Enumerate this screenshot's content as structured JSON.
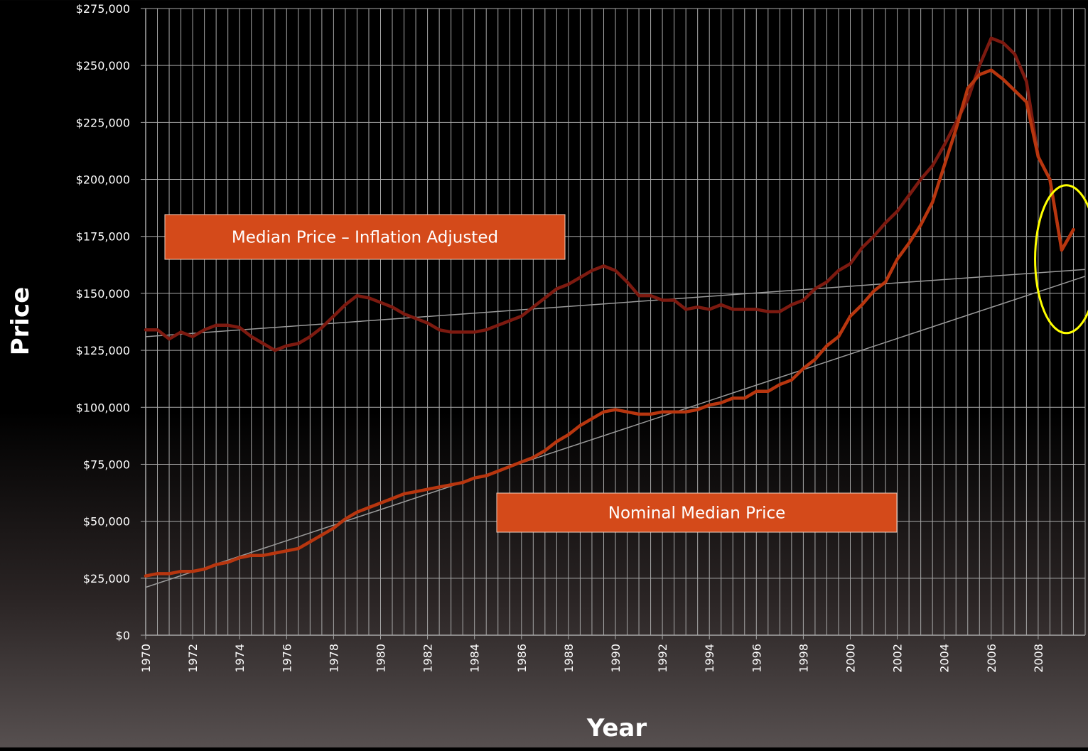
{
  "chart_data": {
    "type": "line",
    "xlabel": "Year",
    "ylabel": "Price",
    "xlim": [
      1970,
      2010
    ],
    "ylim": [
      0,
      275000
    ],
    "grid": true,
    "x_ticks": [
      "1970",
      "1972",
      "1974",
      "1976",
      "1978",
      "1980",
      "1982",
      "1984",
      "1986",
      "1988",
      "1990",
      "1992",
      "1994",
      "1996",
      "1998",
      "2000",
      "2002",
      "2004",
      "2006",
      "2008"
    ],
    "y_ticks": [
      "$0",
      "$25,000",
      "$50,000",
      "$75,000",
      "$100,000",
      "$125,000",
      "$150,000",
      "$175,000",
      "$200,000",
      "$225,000",
      "$250,000",
      "$275,000"
    ],
    "series": [
      {
        "name": "Median Price – Inflation Adjusted",
        "color": "#7d1a10",
        "x": [
          1970,
          1970.5,
          1971,
          1971.5,
          1972,
          1972.5,
          1973,
          1973.5,
          1974,
          1974.5,
          1975,
          1975.5,
          1976,
          1976.5,
          1977,
          1977.5,
          1978,
          1978.5,
          1979,
          1979.5,
          1980,
          1980.5,
          1981,
          1981.5,
          1982,
          1982.5,
          1983,
          1983.5,
          1984,
          1984.5,
          1985,
          1985.5,
          1986,
          1986.5,
          1987,
          1987.5,
          1988,
          1988.5,
          1989,
          1989.5,
          1990,
          1990.5,
          1991,
          1991.5,
          1992,
          1992.5,
          1993,
          1993.5,
          1994,
          1994.5,
          1995,
          1995.5,
          1996,
          1996.5,
          1997,
          1997.5,
          1998,
          1998.5,
          1999,
          1999.5,
          2000,
          2000.5,
          2001,
          2001.5,
          2002,
          2002.5,
          2003,
          2003.5,
          2004,
          2004.5,
          2005,
          2005.5,
          2006,
          2006.5,
          2007,
          2007.5,
          2008,
          2008.5,
          2009,
          2009.5
        ],
        "values": [
          134000,
          134000,
          130000,
          133000,
          131000,
          134000,
          136000,
          136000,
          135000,
          131000,
          128000,
          125000,
          127000,
          128000,
          131000,
          135000,
          140000,
          145000,
          149000,
          148000,
          146000,
          144000,
          141000,
          139000,
          137000,
          134000,
          133000,
          133000,
          133000,
          134000,
          136000,
          138000,
          140000,
          144000,
          148000,
          152000,
          154000,
          157000,
          160000,
          162000,
          160000,
          155000,
          149000,
          149000,
          147000,
          147000,
          143000,
          144000,
          143000,
          145000,
          143000,
          143000,
          143000,
          142000,
          142000,
          145000,
          147000,
          152000,
          155000,
          160000,
          163000,
          170000,
          175000,
          181000,
          186000,
          193000,
          200000,
          206000,
          215000,
          225000,
          235000,
          250000,
          262000,
          260000,
          255000,
          243000,
          210000,
          200000,
          169000,
          178000
        ]
      },
      {
        "name": "Nominal Median Price",
        "color": "#b8360f",
        "x": [
          1970,
          1970.5,
          1971,
          1971.5,
          1972,
          1972.5,
          1973,
          1973.5,
          1974,
          1974.5,
          1975,
          1975.5,
          1976,
          1976.5,
          1977,
          1977.5,
          1978,
          1978.5,
          1979,
          1979.5,
          1980,
          1980.5,
          1981,
          1981.5,
          1982,
          1982.5,
          1983,
          1983.5,
          1984,
          1984.5,
          1985,
          1985.5,
          1986,
          1986.5,
          1987,
          1987.5,
          1988,
          1988.5,
          1989,
          1989.5,
          1990,
          1990.5,
          1991,
          1991.5,
          1992,
          1992.5,
          1993,
          1993.5,
          1994,
          1994.5,
          1995,
          1995.5,
          1996,
          1996.5,
          1997,
          1997.5,
          1998,
          1998.5,
          1999,
          1999.5,
          2000,
          2000.5,
          2001,
          2001.5,
          2002,
          2002.5,
          2003,
          2003.5,
          2004,
          2004.5,
          2005,
          2005.5,
          2006,
          2006.5,
          2007,
          2007.5,
          2008,
          2008.5,
          2009,
          2009.5
        ],
        "values": [
          26000,
          27000,
          27000,
          28000,
          28000,
          29000,
          31000,
          32000,
          34000,
          35000,
          35000,
          36000,
          37000,
          38000,
          41000,
          44000,
          47000,
          51000,
          54000,
          56000,
          58000,
          60000,
          62000,
          63000,
          64000,
          65000,
          66000,
          67000,
          69000,
          70000,
          72000,
          74000,
          76000,
          78000,
          81000,
          85000,
          88000,
          92000,
          95000,
          98000,
          99000,
          98000,
          97000,
          97000,
          98000,
          98000,
          98000,
          99000,
          101000,
          102000,
          104000,
          104000,
          107000,
          107000,
          110000,
          112000,
          117000,
          121000,
          127000,
          131000,
          140000,
          145000,
          151000,
          155000,
          165000,
          172000,
          180000,
          190000,
          206000,
          222000,
          240000,
          246000,
          248000,
          244000,
          239000,
          234000,
          210000,
          200000,
          169000,
          178000
        ]
      }
    ],
    "trendlines": [
      {
        "color": "#9a9a9a",
        "x": [
          1970,
          2010
        ],
        "values": [
          131000,
          160500
        ]
      },
      {
        "color": "#9a9a9a",
        "x": [
          1970,
          2010
        ],
        "values": [
          21000,
          157500
        ]
      }
    ],
    "annotations": [
      {
        "text": "Median Price – Inflation Adjusted",
        "fill": "#d44a1a"
      },
      {
        "text": "Nominal Median Price",
        "fill": "#d44a1a"
      }
    ],
    "highlight": {
      "shape": "ellipse",
      "color": "#ffff00",
      "x_center": 2009.2,
      "y_center": 165000
    }
  }
}
